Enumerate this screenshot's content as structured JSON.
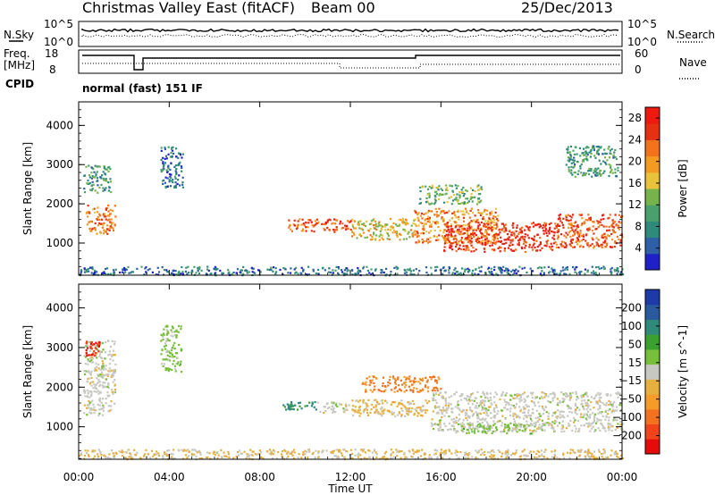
{
  "header": {
    "station": "Christmas Valley East (fitACF)",
    "beam": "Beam 00",
    "date": "25/Dec/2013"
  },
  "status_panels": {
    "nsky": {
      "label": "N.Sky",
      "ticks": [
        "10^5",
        "10^0"
      ]
    },
    "nsearch": {
      "label": "N.Search",
      "ticks": [
        "10^5",
        "10^0"
      ]
    },
    "freq": {
      "label_line1": "Freq.",
      "label_line2": "[MHz]",
      "ticks": [
        "18",
        "8"
      ]
    },
    "nave": {
      "label": "Nave",
      "ticks": [
        "60",
        "0"
      ]
    },
    "cpid": {
      "label": "CPID",
      "mode": "normal (fast) 151 IF"
    }
  },
  "colors": {
    "power_scale": [
      "#2020c8",
      "#2f5fa6",
      "#2e8a7a",
      "#4aa06a",
      "#77b34d",
      "#e8c23a",
      "#f29a22",
      "#f3721c",
      "#e63012",
      "#ee1a10"
    ],
    "velocity_scale": [
      "#e60b0b",
      "#f0441a",
      "#f3721f",
      "#f59b2a",
      "#e6b040",
      "#c8c8c2",
      "#78bf3b",
      "#3aa12f",
      "#2f8a7a",
      "#2a5a9e",
      "#1e3aa8"
    ]
  },
  "chart_data": [
    {
      "type": "heatmap",
      "title": "Power",
      "ylabel": "Slant Range [km]",
      "xlabel": "Time UT",
      "x_ticks": [
        "00:00",
        "04:00",
        "08:00",
        "12:00",
        "16:00",
        "20:00",
        "00:00"
      ],
      "y_ticks": [
        1000,
        2000,
        3000,
        4000
      ],
      "ylim": [
        180,
        4600
      ],
      "colorbar": {
        "label": "Power [dB]",
        "ticks": [
          4,
          8,
          12,
          16,
          20,
          24,
          28
        ],
        "range": [
          0,
          30
        ]
      },
      "regions": [
        {
          "t0": 0.3,
          "t1": 1.6,
          "r0": 1250,
          "r1": 2000,
          "p": 22
        },
        {
          "t0": 0.2,
          "t1": 1.4,
          "r0": 2300,
          "r1": 3000,
          "p": 9
        },
        {
          "t0": 3.6,
          "t1": 4.6,
          "r0": 2400,
          "r1": 3500,
          "p": 6
        },
        {
          "t0": 9.2,
          "t1": 12.0,
          "r0": 1300,
          "r1": 1650,
          "p": 24
        },
        {
          "t0": 12.0,
          "t1": 14.8,
          "r0": 1100,
          "r1": 1650,
          "p": 17
        },
        {
          "t0": 14.8,
          "t1": 18.5,
          "r0": 1000,
          "r1": 1900,
          "p": 20
        },
        {
          "t0": 16.1,
          "t1": 21.0,
          "r0": 800,
          "r1": 1550,
          "p": 27
        },
        {
          "t0": 21.0,
          "t1": 24.0,
          "r0": 900,
          "r1": 1750,
          "p": 24
        },
        {
          "t0": 15.0,
          "t1": 17.8,
          "r0": 2000,
          "r1": 2500,
          "p": 12
        },
        {
          "t0": 21.5,
          "t1": 23.8,
          "r0": 2700,
          "r1": 3500,
          "p": 10
        },
        {
          "t0": 0.0,
          "t1": 24.0,
          "r0": 200,
          "r1": 420,
          "p": 6
        }
      ]
    },
    {
      "type": "heatmap",
      "title": "Velocity",
      "ylabel": "Slant Range [km]",
      "xlabel": "Time UT",
      "x_ticks": [
        "00:00",
        "04:00",
        "08:00",
        "12:00",
        "16:00",
        "20:00",
        "00:00"
      ],
      "y_ticks": [
        1000,
        2000,
        3000,
        4000
      ],
      "ylim": [
        180,
        4600
      ],
      "colorbar": {
        "label": "Velocity [m s^-1]",
        "ticks": [
          200,
          100,
          50,
          15,
          -15,
          -50,
          -100,
          -200
        ],
        "range": [
          -250,
          250
        ]
      },
      "regions": [
        {
          "t0": 0.2,
          "t1": 1.6,
          "r0": 1300,
          "r1": 3200,
          "v": 0
        },
        {
          "t0": 0.3,
          "t1": 0.9,
          "r0": 2800,
          "r1": 3200,
          "v": -200
        },
        {
          "t0": 3.6,
          "t1": 4.5,
          "r0": 2400,
          "r1": 3600,
          "v": 40
        },
        {
          "t0": 9.0,
          "t1": 10.5,
          "r0": 1450,
          "r1": 1650,
          "v": 120
        },
        {
          "t0": 10.5,
          "t1": 12.0,
          "r0": 1350,
          "r1": 1650,
          "v": 0
        },
        {
          "t0": 12.0,
          "t1": 15.5,
          "r0": 1250,
          "r1": 1700,
          "v": -40
        },
        {
          "t0": 15.5,
          "t1": 24.0,
          "r0": 900,
          "r1": 1900,
          "v": 0
        },
        {
          "t0": 16.5,
          "t1": 20.0,
          "r0": 850,
          "r1": 1100,
          "v": 40
        },
        {
          "t0": 12.5,
          "t1": 16.0,
          "r0": 1900,
          "r1": 2300,
          "v": -120
        },
        {
          "t0": 0.0,
          "t1": 24.0,
          "r0": 200,
          "r1": 450,
          "v": -30
        }
      ]
    }
  ]
}
